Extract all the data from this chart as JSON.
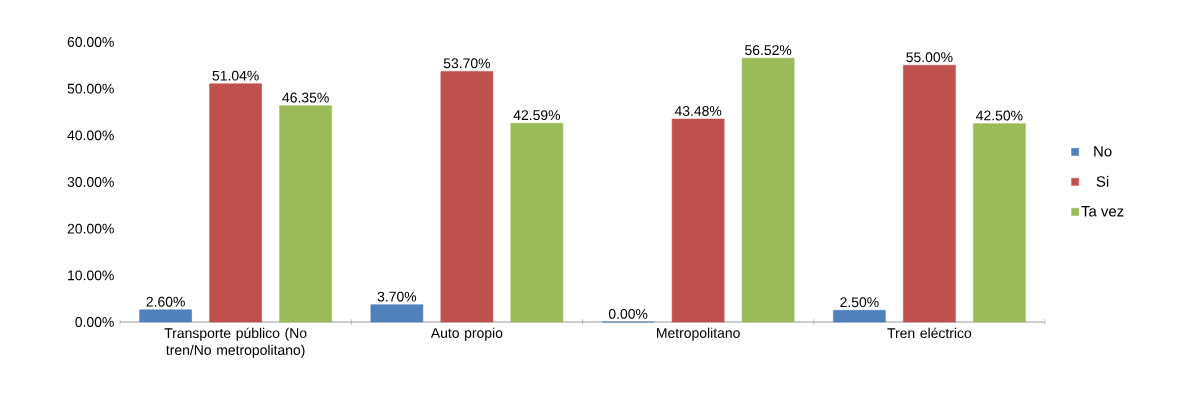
{
  "chart_data": {
    "type": "bar",
    "categories": [
      "Transporte público (No tren/No metropolitano)",
      "Auto propio",
      "Metropolitano",
      "Tren eléctrico"
    ],
    "series": [
      {
        "name": "No",
        "color": "#4f81bd",
        "values": [
          2.6,
          3.7,
          0,
          2.5
        ],
        "value_labels": [
          "2.60%",
          "3.70%",
          "0.00%",
          "2.50%"
        ]
      },
      {
        "name": "Si",
        "color": "#c0504d",
        "values": [
          51.04,
          53.7,
          43.48,
          55.0
        ],
        "value_labels": [
          "51.04%",
          "53.70%",
          "43.48%",
          "55.00%"
        ]
      },
      {
        "name": "Ta vez",
        "color": "#9bbb59",
        "values": [
          46.35,
          42.59,
          56.52,
          42.5
        ],
        "value_labels": [
          "46.35%",
          "42.59%",
          "56.52%",
          "42.50%"
        ]
      }
    ],
    "ylim": [
      0,
      60
    ],
    "yticks": [
      {
        "value": 0,
        "label": "0.00%"
      },
      {
        "value": 10,
        "label": "10.00%"
      },
      {
        "value": 20,
        "label": "20.00%"
      },
      {
        "value": 30,
        "label": "30.00%"
      },
      {
        "value": 40,
        "label": "40.00%"
      },
      {
        "value": 50,
        "label": "50.00%"
      },
      {
        "value": 60,
        "label": "60.00%"
      }
    ],
    "grid": false,
    "legend": "right"
  }
}
